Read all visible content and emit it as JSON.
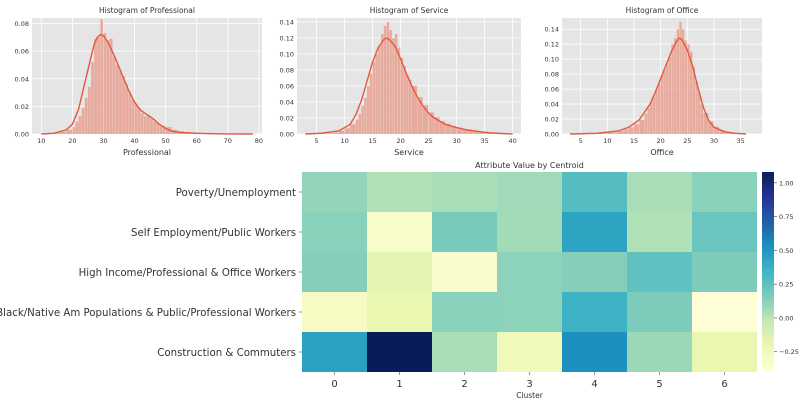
{
  "chart_data": [
    {
      "type": "histogram",
      "title": "Histogram of Professional",
      "xlabel": "Professional",
      "ylabel": "",
      "xlim": [
        7,
        81
      ],
      "ylim": [
        0,
        0.084
      ],
      "xticks": [
        10,
        20,
        30,
        40,
        50,
        60,
        70,
        80
      ],
      "yticks": [
        0.0,
        0.02,
        0.04,
        0.06,
        0.08
      ],
      "ytick_labels": [
        "0.00",
        "0.02",
        "0.04",
        "0.06",
        "0.08"
      ],
      "grid": true,
      "bar_color": "#e8a090",
      "kde_color": "#e05a40",
      "bins": [
        [
          10,
          0
        ],
        [
          12,
          0.0005
        ],
        [
          14,
          0.001
        ],
        [
          16,
          0.0015
        ],
        [
          18,
          0.003
        ],
        [
          20,
          0.005
        ],
        [
          21,
          0.009
        ],
        [
          22,
          0.013
        ],
        [
          23,
          0.019
        ],
        [
          24,
          0.026
        ],
        [
          25,
          0.034
        ],
        [
          26,
          0.052
        ],
        [
          27,
          0.069
        ],
        [
          28,
          0.07
        ],
        [
          29,
          0.083
        ],
        [
          30,
          0.073
        ],
        [
          31,
          0.068
        ],
        [
          32,
          0.069
        ],
        [
          33,
          0.056
        ],
        [
          34,
          0.05
        ],
        [
          35,
          0.046
        ],
        [
          36,
          0.042
        ],
        [
          37,
          0.036
        ],
        [
          38,
          0.03
        ],
        [
          39,
          0.025
        ],
        [
          40,
          0.022
        ],
        [
          41,
          0.019
        ],
        [
          42,
          0.015
        ],
        [
          43,
          0.013
        ],
        [
          44,
          0.014
        ],
        [
          45,
          0.011
        ],
        [
          46,
          0.009
        ],
        [
          47,
          0.008
        ],
        [
          48,
          0.006
        ],
        [
          49,
          0.006
        ],
        [
          50,
          0.005
        ],
        [
          52,
          0.003
        ],
        [
          54,
          0.002
        ],
        [
          56,
          0.0015
        ],
        [
          58,
          0.001
        ],
        [
          60,
          0.0006
        ],
        [
          64,
          0.0004
        ],
        [
          68,
          0.0003
        ],
        [
          72,
          0.0002
        ],
        [
          76,
          0.0001
        ],
        [
          79,
          0
        ]
      ],
      "kde": [
        [
          10,
          0
        ],
        [
          14,
          0.0005
        ],
        [
          18,
          0.003
        ],
        [
          20,
          0.007
        ],
        [
          22,
          0.018
        ],
        [
          24,
          0.037
        ],
        [
          26,
          0.056
        ],
        [
          27,
          0.065
        ],
        [
          28,
          0.07
        ],
        [
          29,
          0.072
        ],
        [
          30,
          0.071
        ],
        [
          31,
          0.068
        ],
        [
          32,
          0.064
        ],
        [
          34,
          0.054
        ],
        [
          36,
          0.043
        ],
        [
          38,
          0.032
        ],
        [
          40,
          0.023
        ],
        [
          42,
          0.017
        ],
        [
          44,
          0.014
        ],
        [
          46,
          0.011
        ],
        [
          48,
          0.007
        ],
        [
          50,
          0.004
        ],
        [
          52,
          0.002
        ],
        [
          55,
          0.001
        ],
        [
          60,
          0.0005
        ],
        [
          65,
          0.0002
        ],
        [
          70,
          0.0001
        ],
        [
          78,
          0
        ]
      ]
    },
    {
      "type": "histogram",
      "title": "Histogram of Service",
      "xlabel": "Service",
      "ylabel": "",
      "xlim": [
        1.5,
        41.5
      ],
      "ylim": [
        0,
        0.145
      ],
      "xticks": [
        5,
        10,
        15,
        20,
        25,
        30,
        35,
        40
      ],
      "yticks": [
        0.0,
        0.02,
        0.04,
        0.06,
        0.08,
        0.1,
        0.12,
        0.14
      ],
      "ytick_labels": [
        "0.00",
        "0.02",
        "0.04",
        "0.06",
        "0.08",
        "0.10",
        "0.12",
        "0.14"
      ],
      "grid": true,
      "bar_color": "#e8a090",
      "kde_color": "#e05a40",
      "bins": [
        [
          3,
          0
        ],
        [
          5,
          0.0005
        ],
        [
          7,
          0.001
        ],
        [
          8,
          0.002
        ],
        [
          9,
          0.004
        ],
        [
          10,
          0.007
        ],
        [
          11,
          0.012
        ],
        [
          12,
          0.018
        ],
        [
          12.5,
          0.025
        ],
        [
          13,
          0.035
        ],
        [
          13.5,
          0.045
        ],
        [
          14,
          0.06
        ],
        [
          14.5,
          0.075
        ],
        [
          15,
          0.09
        ],
        [
          15.5,
          0.1
        ],
        [
          16,
          0.11
        ],
        [
          16.5,
          0.125
        ],
        [
          17,
          0.135
        ],
        [
          17.5,
          0.14
        ],
        [
          18,
          0.13
        ],
        [
          18.5,
          0.12
        ],
        [
          19,
          0.125
        ],
        [
          19.5,
          0.108
        ],
        [
          20,
          0.095
        ],
        [
          20.5,
          0.085
        ],
        [
          21,
          0.074
        ],
        [
          21.5,
          0.068
        ],
        [
          22,
          0.06
        ],
        [
          23,
          0.046
        ],
        [
          24,
          0.036
        ],
        [
          25,
          0.027
        ],
        [
          26,
          0.021
        ],
        [
          27,
          0.016
        ],
        [
          28,
          0.013
        ],
        [
          29,
          0.01
        ],
        [
          30,
          0.008
        ],
        [
          31,
          0.006
        ],
        [
          32,
          0.005
        ],
        [
          33,
          0.004
        ],
        [
          34,
          0.003
        ],
        [
          35,
          0.002
        ],
        [
          36,
          0.0015
        ],
        [
          37,
          0.001
        ],
        [
          38,
          0.0008
        ],
        [
          39,
          0.0004
        ],
        [
          40,
          0
        ]
      ],
      "kde": [
        [
          3,
          0
        ],
        [
          6,
          0.001
        ],
        [
          9,
          0.004
        ],
        [
          11,
          0.012
        ],
        [
          12,
          0.024
        ],
        [
          13,
          0.042
        ],
        [
          14,
          0.066
        ],
        [
          15,
          0.09
        ],
        [
          16,
          0.108
        ],
        [
          17,
          0.118
        ],
        [
          17.5,
          0.12
        ],
        [
          18,
          0.118
        ],
        [
          19,
          0.11
        ],
        [
          20,
          0.094
        ],
        [
          21,
          0.076
        ],
        [
          22,
          0.06
        ],
        [
          23,
          0.046
        ],
        [
          24,
          0.035
        ],
        [
          25,
          0.026
        ],
        [
          26,
          0.02
        ],
        [
          28,
          0.012
        ],
        [
          30,
          0.008
        ],
        [
          32,
          0.005
        ],
        [
          34,
          0.003
        ],
        [
          36,
          0.0015
        ],
        [
          38,
          0.0006
        ],
        [
          40,
          0
        ]
      ]
    },
    {
      "type": "histogram",
      "title": "Histogram of Office",
      "xlabel": "Office",
      "ylabel": "",
      "xlim": [
        1.5,
        39
      ],
      "ylim": [
        0,
        0.155
      ],
      "xticks": [
        5,
        10,
        15,
        20,
        25,
        30,
        35
      ],
      "yticks": [
        0.0,
        0.02,
        0.04,
        0.06,
        0.08,
        0.1,
        0.12,
        0.14
      ],
      "ytick_labels": [
        "0.00",
        "0.02",
        "0.04",
        "0.06",
        "0.08",
        "0.10",
        "0.12",
        "0.14"
      ],
      "grid": true,
      "bar_color": "#e8a090",
      "kde_color": "#e05a40",
      "bins": [
        [
          3,
          0
        ],
        [
          6,
          0.0005
        ],
        [
          8,
          0.001
        ],
        [
          10,
          0.002
        ],
        [
          12,
          0.004
        ],
        [
          13,
          0.006
        ],
        [
          14,
          0.009
        ],
        [
          15,
          0.013
        ],
        [
          16,
          0.019
        ],
        [
          17,
          0.027
        ],
        [
          17.5,
          0.035
        ],
        [
          18,
          0.043
        ],
        [
          18.5,
          0.05
        ],
        [
          19,
          0.06
        ],
        [
          19.5,
          0.067
        ],
        [
          20,
          0.078
        ],
        [
          20.5,
          0.085
        ],
        [
          21,
          0.095
        ],
        [
          21.5,
          0.103
        ],
        [
          22,
          0.12
        ],
        [
          22.5,
          0.128
        ],
        [
          23,
          0.14
        ],
        [
          23.5,
          0.15
        ],
        [
          24,
          0.14
        ],
        [
          24.5,
          0.125
        ],
        [
          25,
          0.12
        ],
        [
          25.5,
          0.11
        ],
        [
          26,
          0.09
        ],
        [
          26.5,
          0.07
        ],
        [
          27,
          0.055
        ],
        [
          27.5,
          0.04
        ],
        [
          28,
          0.028
        ],
        [
          29,
          0.017
        ],
        [
          30,
          0.01
        ],
        [
          31,
          0.005
        ],
        [
          32,
          0.003
        ],
        [
          33,
          0.0015
        ],
        [
          34,
          0.0008
        ],
        [
          36,
          0
        ]
      ],
      "kde": [
        [
          3,
          0
        ],
        [
          8,
          0.001
        ],
        [
          12,
          0.004
        ],
        [
          14,
          0.009
        ],
        [
          16,
          0.019
        ],
        [
          18,
          0.04
        ],
        [
          19,
          0.056
        ],
        [
          20,
          0.074
        ],
        [
          21,
          0.092
        ],
        [
          22,
          0.11
        ],
        [
          23,
          0.124
        ],
        [
          23.5,
          0.128
        ],
        [
          24,
          0.126
        ],
        [
          25,
          0.112
        ],
        [
          26,
          0.09
        ],
        [
          27,
          0.062
        ],
        [
          28,
          0.036
        ],
        [
          29,
          0.018
        ],
        [
          30,
          0.009
        ],
        [
          32,
          0.003
        ],
        [
          34,
          0.001
        ],
        [
          36,
          0
        ]
      ]
    },
    {
      "type": "heatmap",
      "title": "Attribute Value by Centroid",
      "xlabel": "Cluster",
      "ylabel": "",
      "columns": [
        "0",
        "1",
        "2",
        "3",
        "4",
        "5",
        "6"
      ],
      "rows": [
        "Poverty/Unemployment",
        "Self Employment/Public Workers",
        "High Income/Professional & Office Workers",
        "Black/Native Am Populations & Public/Professional Workers",
        "Construction & Commuters"
      ],
      "values": [
        [
          0.1,
          0.03,
          0.05,
          0.07,
          0.28,
          0.05,
          0.13
        ],
        [
          0.13,
          -0.32,
          0.18,
          0.06,
          0.43,
          0.03,
          0.22
        ],
        [
          0.14,
          -0.17,
          -0.34,
          0.12,
          0.14,
          0.25,
          0.16
        ],
        [
          -0.3,
          -0.2,
          0.13,
          0.12,
          0.36,
          0.16,
          -0.38
        ],
        [
          0.45,
          1.08,
          0.05,
          -0.25,
          0.53,
          0.08,
          -0.2
        ]
      ],
      "colorbar": {
        "min": -0.4,
        "max": 1.08,
        "ticks": [
          -0.25,
          0.0,
          0.25,
          0.5,
          0.75,
          1.0
        ],
        "tick_labels": [
          "−0.25",
          "0.00",
          "0.25",
          "0.50",
          "0.75",
          "1.00"
        ],
        "colormap": "YlGnBu",
        "stops": [
          "#ffffd9",
          "#edf8b1",
          "#c7e9b4",
          "#7fcdbb",
          "#41b6c4",
          "#1d91c0",
          "#225ea8",
          "#253494",
          "#081d58"
        ]
      }
    }
  ]
}
